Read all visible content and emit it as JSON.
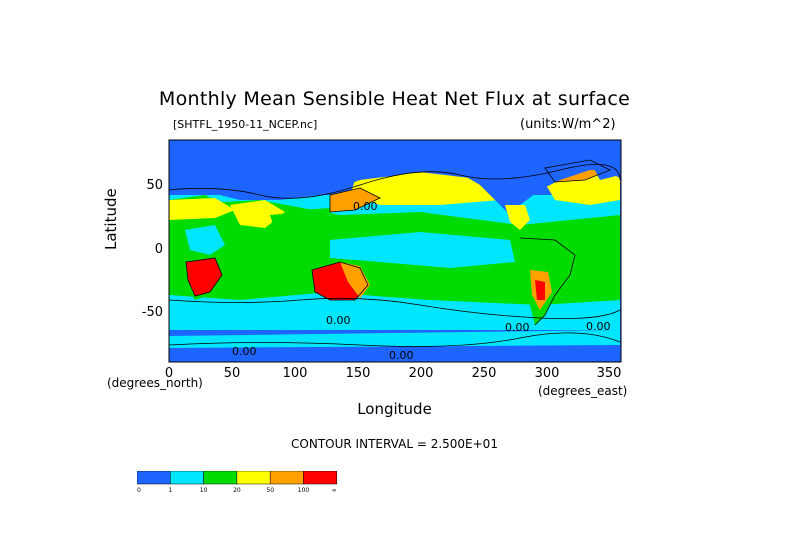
{
  "chart_data": {
    "type": "heatmap",
    "title": "Monthly Mean Sensible Heat Net Flux at surface",
    "subtitle_left": "[SHTFL_1950-11_NCEP.nc]",
    "subtitle_right": "(units:W/m^2)",
    "xlabel": "Longitude",
    "ylabel": "Latitude",
    "x_corner_left": "(degrees_north)",
    "x_corner_right": "(degrees_east)",
    "xlim": [
      0,
      357.5
    ],
    "ylim": [
      -90,
      90
    ],
    "xticks": [
      "0",
      "50",
      "100",
      "150",
      "200",
      "250",
      "300",
      "350"
    ],
    "yticks": [
      "50",
      "0",
      "-50"
    ],
    "contour_interval": "CONTOUR INTERVAL = 2.500E+01",
    "contour_labels": [
      "0.00",
      "0.00",
      "0.00",
      "0.00",
      "0.00",
      "0.00"
    ],
    "colorbar": {
      "labels": [
        "0",
        "1",
        "10",
        "20",
        "50",
        "100",
        "∞"
      ],
      "colors": [
        "#1e64ff",
        "#00e6ff",
        "#00dc00",
        "#ffff00",
        "#ffa000",
        "#ff0000"
      ]
    },
    "grid": false
  }
}
